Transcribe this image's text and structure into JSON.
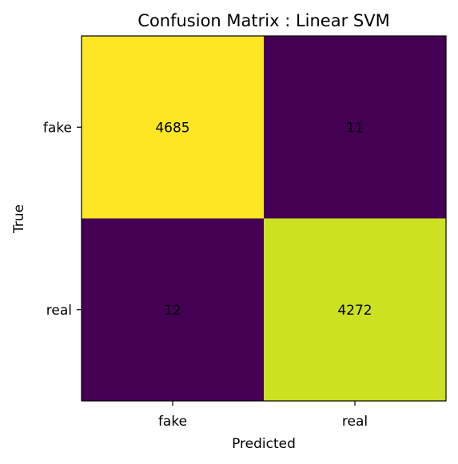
{
  "chart_data": {
    "type": "heatmap",
    "title": "Confusion Matrix : Linear SVM",
    "xlabel": "Predicted",
    "ylabel": "True",
    "x_categories": [
      "fake",
      "real"
    ],
    "y_categories": [
      "fake",
      "real"
    ],
    "values": [
      [
        4685,
        11
      ],
      [
        12,
        4272
      ]
    ],
    "colormap": "viridis",
    "colors": {
      "low": "#440154",
      "high": "#fde725",
      "mid_high": "#c5e021"
    },
    "grid": false,
    "legend": "none"
  }
}
